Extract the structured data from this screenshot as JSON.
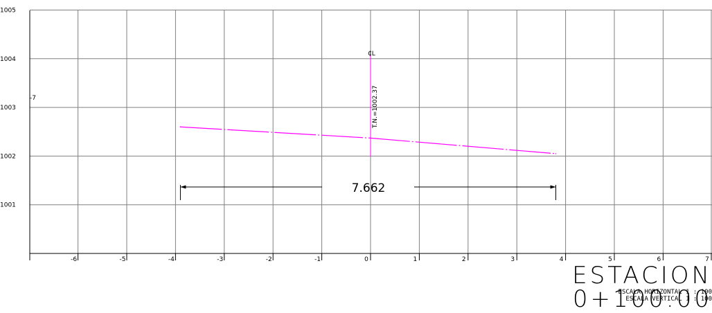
{
  "chart_data": {
    "type": "line",
    "x": [
      -3.9,
      0,
      3.8
    ],
    "series": [
      {
        "values": [
          2.6,
          2.37,
          2.05
        ]
      }
    ],
    "xlim": [
      -7,
      7
    ],
    "ylim": [
      1000,
      1005
    ],
    "xticks": [
      -6,
      -5,
      -4,
      -3,
      -2,
      -1,
      0,
      1,
      2,
      3,
      4,
      5,
      6,
      7
    ],
    "xtick_labels": [
      "-6",
      "-5",
      "-4",
      "-3",
      "-2",
      "-1",
      "0",
      "1",
      "2",
      "3",
      "4",
      "5",
      "6",
      "7"
    ],
    "yticks": [
      1001,
      1002,
      1003,
      1004,
      1005
    ],
    "ytick_labels": [
      "1001",
      "1002",
      "1003",
      "1004",
      "1005"
    ],
    "grid": true,
    "colors": {
      "terrain": "#ff00ff",
      "grid": "#808080",
      "axis": "#000000"
    }
  },
  "annotations": {
    "side_mark": "-7",
    "centerline_symbol": "₵L",
    "natural_ground": "T.N.=1002.37",
    "width": "7.662",
    "width_range": [
      -3.9,
      3.8
    ]
  },
  "title": "ESTACION 0+100.00",
  "scales": {
    "horizontal": "ESCALA HORIZONTAL 1 : 100",
    "vertical": "ESCALA VERTICAL 1 : 100"
  }
}
